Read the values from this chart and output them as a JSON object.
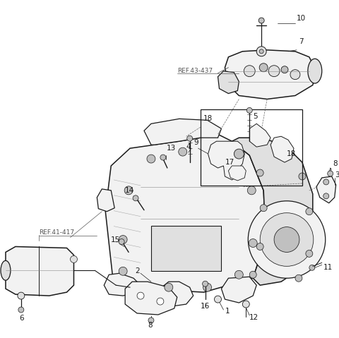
{
  "background_color": "#ffffff",
  "line_color": "#1a1a1a",
  "text_color": "#1a1a1a",
  "ref_color": "#555555",
  "fig_width": 4.8,
  "fig_height": 4.79,
  "dpi": 100,
  "fs_label": 7.5,
  "fs_ref": 6.5,
  "lw_main": 1.1,
  "lw_body": 0.9,
  "lw_thin": 0.55,
  "lw_leader": 0.5
}
